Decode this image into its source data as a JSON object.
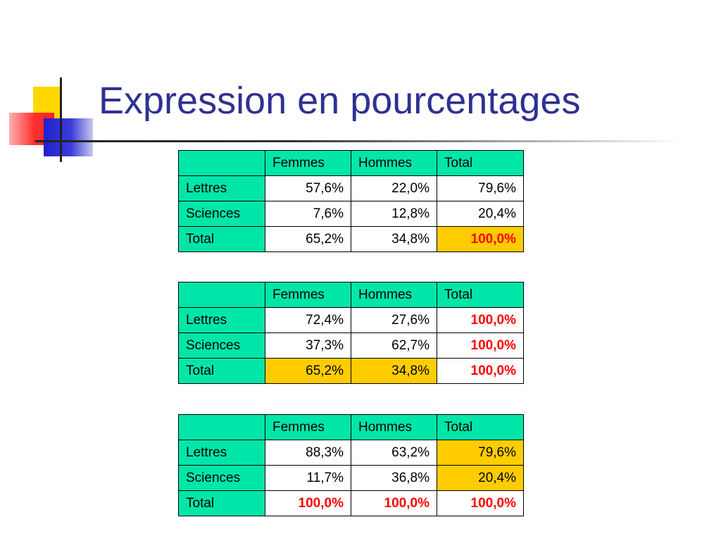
{
  "slide": {
    "title": "Expression en pourcentages",
    "colors": {
      "title": "#2e3192",
      "header_bg": "#00e6a8",
      "highlight_bg": "#ffcc00",
      "emphasis_text": "#ff0000"
    }
  },
  "tables": [
    {
      "headers": [
        "",
        "Femmes",
        "Hommes",
        "Total"
      ],
      "rows": [
        {
          "label": "Lettres",
          "cells": [
            {
              "value": "57,6%",
              "highlight": false,
              "emphasis": false
            },
            {
              "value": "22,0%",
              "highlight": false,
              "emphasis": false
            },
            {
              "value": "79,6%",
              "highlight": false,
              "emphasis": false
            }
          ]
        },
        {
          "label": "Sciences",
          "cells": [
            {
              "value": "7,6%",
              "highlight": false,
              "emphasis": false
            },
            {
              "value": "12,8%",
              "highlight": false,
              "emphasis": false
            },
            {
              "value": "20,4%",
              "highlight": false,
              "emphasis": false
            }
          ]
        },
        {
          "label": "Total",
          "cells": [
            {
              "value": "65,2%",
              "highlight": false,
              "emphasis": false
            },
            {
              "value": "34,8%",
              "highlight": false,
              "emphasis": false
            },
            {
              "value": "100,0%",
              "highlight": true,
              "emphasis": true
            }
          ]
        }
      ]
    },
    {
      "headers": [
        "",
        "Femmes",
        "Hommes",
        "Total"
      ],
      "rows": [
        {
          "label": "Lettres",
          "cells": [
            {
              "value": "72,4%",
              "highlight": false,
              "emphasis": false
            },
            {
              "value": "27,6%",
              "highlight": false,
              "emphasis": false
            },
            {
              "value": "100,0%",
              "highlight": false,
              "emphasis": true
            }
          ]
        },
        {
          "label": "Sciences",
          "cells": [
            {
              "value": "37,3%",
              "highlight": false,
              "emphasis": false
            },
            {
              "value": "62,7%",
              "highlight": false,
              "emphasis": false
            },
            {
              "value": "100,0%",
              "highlight": false,
              "emphasis": true
            }
          ]
        },
        {
          "label": "Total",
          "cells": [
            {
              "value": "65,2%",
              "highlight": true,
              "emphasis": false
            },
            {
              "value": "34,8%",
              "highlight": true,
              "emphasis": false
            },
            {
              "value": "100,0%",
              "highlight": false,
              "emphasis": true
            }
          ]
        }
      ]
    },
    {
      "headers": [
        "",
        "Femmes",
        "Hommes",
        "Total"
      ],
      "rows": [
        {
          "label": "Lettres",
          "cells": [
            {
              "value": "88,3%",
              "highlight": false,
              "emphasis": false
            },
            {
              "value": "63,2%",
              "highlight": false,
              "emphasis": false
            },
            {
              "value": "79,6%",
              "highlight": true,
              "emphasis": false
            }
          ]
        },
        {
          "label": "Sciences",
          "cells": [
            {
              "value": "11,7%",
              "highlight": false,
              "emphasis": false
            },
            {
              "value": "36,8%",
              "highlight": false,
              "emphasis": false
            },
            {
              "value": "20,4%",
              "highlight": true,
              "emphasis": false
            }
          ]
        },
        {
          "label": "Total",
          "cells": [
            {
              "value": "100,0%",
              "highlight": false,
              "emphasis": true
            },
            {
              "value": "100,0%",
              "highlight": false,
              "emphasis": true
            },
            {
              "value": "100,0%",
              "highlight": false,
              "emphasis": true
            }
          ]
        }
      ]
    }
  ]
}
